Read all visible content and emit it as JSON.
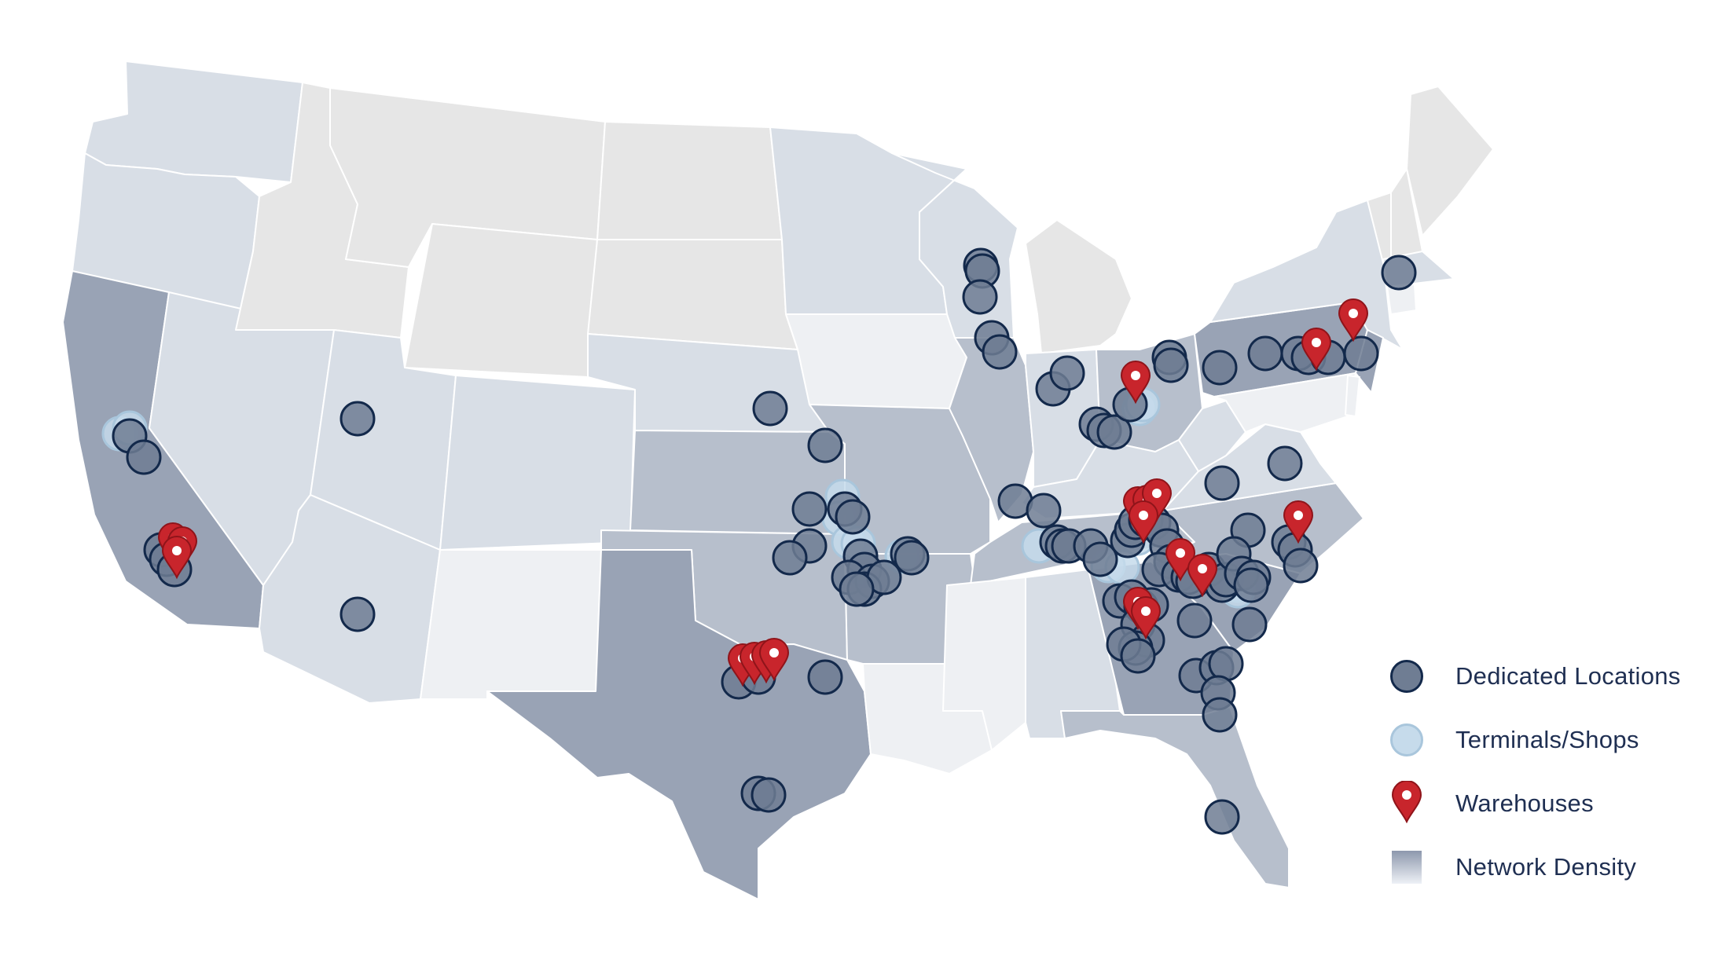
{
  "legend": {
    "dedicated": "Dedicated Locations",
    "terminals": "Terminals/Shops",
    "warehouses": "Warehouses",
    "density": "Network Density"
  },
  "colors": {
    "density_high": "#99a3b5",
    "density_mid": "#b7bfcc",
    "density_low": "#d8dee6",
    "density_lowest": "#eef0f3",
    "no_network": "#e6e6e6",
    "dedicated_fill": "#6f7d93",
    "dedicated_stroke": "#13294b",
    "terminal_fill": "#c6dbeb",
    "warehouse_red": "#c8252c"
  },
  "icons": {
    "dedicated": "circle-marker-icon",
    "terminal": "light-circle-marker-icon",
    "warehouse": "map-pin-icon",
    "density": "gradient-swatch-icon"
  }
}
